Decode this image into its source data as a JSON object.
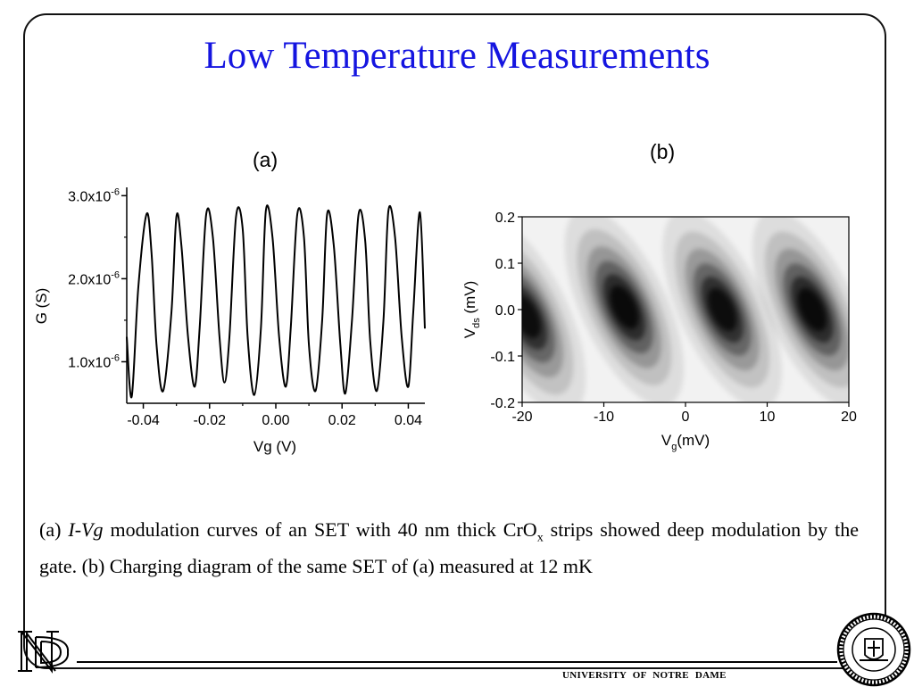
{
  "slide": {
    "title": "Low Temperature Measurements",
    "footer": "UNIVERSITY OF NOTRE DAME"
  },
  "caption": {
    "p1": "(a) ",
    "iv": "I-Vg",
    "p2": " modulation curves of an SET with 40 nm thick CrO",
    "sub": "x",
    "p3": " strips showed deep modulation by the gate. (b) Charging diagram of the same SET of (a) measured at 12 mK"
  },
  "logos": {
    "monogram": "ND",
    "seal_text": "UNIVERSITY OF NOTRE DAME"
  },
  "chart_data": [
    {
      "panel_label": "(a)",
      "type": "line",
      "xlabel": "Vg (V)",
      "ylabel": "G (S)",
      "xlim": [
        -0.045,
        0.045
      ],
      "ylim": [
        5e-07,
        3.1e-06
      ],
      "x_ticks": [
        -0.04,
        -0.02,
        0.0,
        0.02,
        0.04
      ],
      "x_tick_labels": [
        "-0.04",
        "-0.02",
        "0.00",
        "0.02",
        "0.04"
      ],
      "y_ticks": [
        1e-06,
        2e-06,
        3e-06
      ],
      "y_tick_labels": [
        {
          "base": "1.0x10",
          "exp": "-6"
        },
        {
          "base": "2.0x10",
          "exp": "-6"
        },
        {
          "base": "3.0x10",
          "exp": "-6"
        }
      ],
      "grid": false,
      "series": [
        {
          "color": "#000000",
          "x": [
            -0.045,
            -0.0435,
            -0.0415,
            -0.039,
            -0.0375,
            -0.036,
            -0.034,
            -0.0315,
            -0.03,
            -0.0285,
            -0.0265,
            -0.0245,
            -0.023,
            -0.021,
            -0.019,
            -0.017,
            -0.0155,
            -0.014,
            -0.012,
            -0.01,
            -0.0085,
            -0.0065,
            -0.0045,
            -0.003,
            -0.001,
            0.001,
            0.003,
            0.0045,
            0.0065,
            0.0085,
            0.01,
            0.012,
            0.014,
            0.0155,
            0.0175,
            0.0195,
            0.021,
            0.023,
            0.025,
            0.027,
            0.0285,
            0.0305,
            0.0325,
            0.034,
            0.036,
            0.038,
            0.04,
            0.0415,
            0.0435,
            0.045
          ],
          "y": [
            1.3e-06,
            5.8e-07,
            1.9e-06,
            2.78e-06,
            2.3e-06,
            1.2e-06,
            6.5e-07,
            1.6e-06,
            2.75e-06,
            2.4e-06,
            1.3e-06,
            7e-07,
            1.4e-06,
            2.78e-06,
            2.5e-06,
            1.3e-06,
            7.5e-07,
            1.3e-06,
            2.75e-06,
            2.6e-06,
            1.3e-06,
            6e-07,
            1.4e-06,
            2.82e-06,
            2.5e-06,
            1.3e-06,
            7e-07,
            1.4e-06,
            2.78e-06,
            2.5e-06,
            1.2e-06,
            6.5e-07,
            1.5e-06,
            2.78e-06,
            2.4e-06,
            1.2e-06,
            6.2e-07,
            1.5e-06,
            2.78e-06,
            2.45e-06,
            1.25e-06,
            6.5e-07,
            1.5e-06,
            2.82e-06,
            2.5e-06,
            1.3e-06,
            7e-07,
            1.6e-06,
            2.8e-06,
            1.4e-06
          ]
        }
      ]
    },
    {
      "panel_label": "(b)",
      "type": "heatmap",
      "xlabel": {
        "base": "V",
        "sub": "g",
        "rest": "(mV)"
      },
      "ylabel": {
        "base": "V",
        "sub": "ds",
        "rest": " (mV)"
      },
      "xlim": [
        -20,
        20
      ],
      "ylim": [
        -0.2,
        0.2
      ],
      "x_ticks": [
        -20,
        -10,
        0,
        10,
        20
      ],
      "x_tick_labels": [
        "-20",
        "-10",
        "0",
        "10",
        "20"
      ],
      "y_ticks": [
        -0.2,
        -0.1,
        0.0,
        0.1,
        0.2
      ],
      "y_tick_labels": [
        "-0.2",
        "-0.1",
        "0.0",
        "0.1",
        "0.2"
      ],
      "colormap": [
        "#ffffff",
        "#000000"
      ],
      "dark_spots": [
        {
          "x": -19.5,
          "y": -0.015,
          "intensity": 0.95
        },
        {
          "x": -7.5,
          "y": 0.005,
          "intensity": 1.0
        },
        {
          "x": 4.5,
          "y": 0.0,
          "intensity": 0.95
        },
        {
          "x": 15.5,
          "y": 0.0,
          "intensity": 1.0
        }
      ]
    }
  ]
}
